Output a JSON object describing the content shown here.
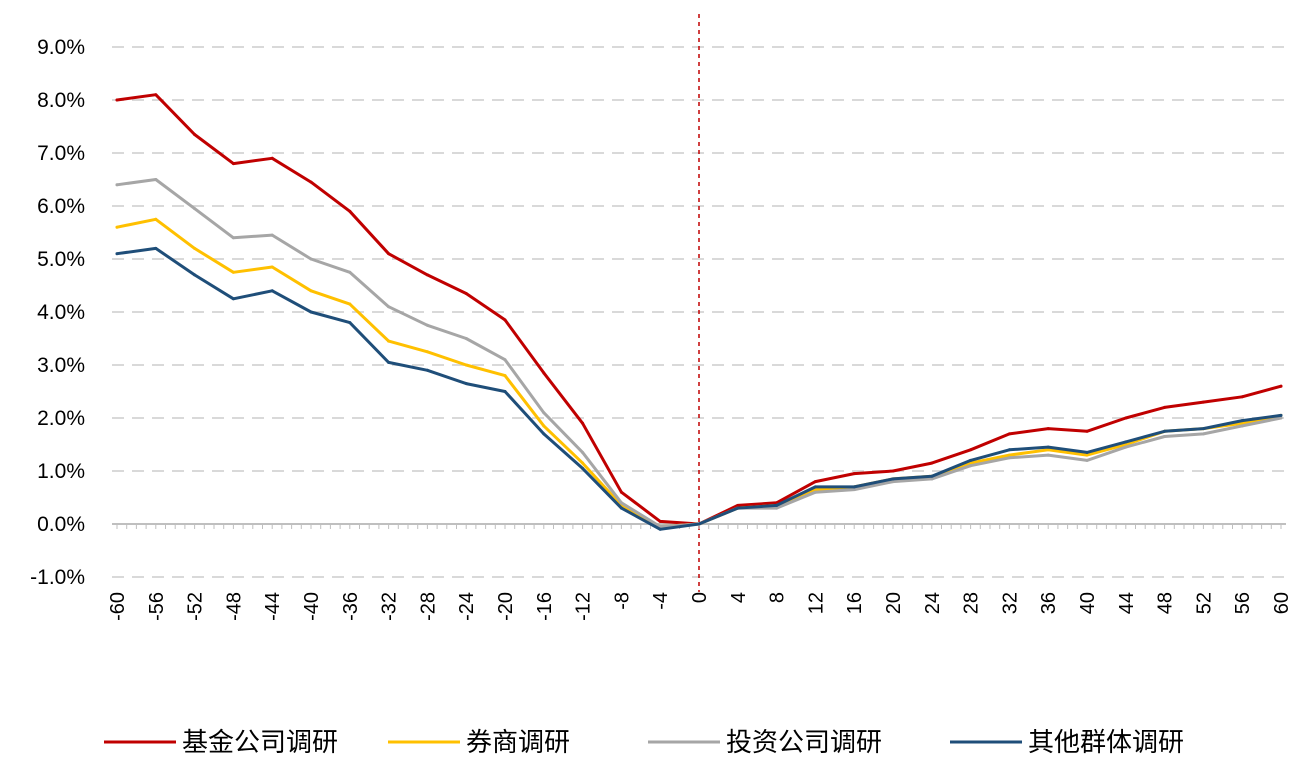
{
  "chart_data": {
    "type": "line",
    "title": "",
    "xlabel": "",
    "ylabel": "",
    "xlim": [
      -60,
      60
    ],
    "ylim": [
      -1.0,
      9.0
    ],
    "y_ticks": [
      "-1.0%",
      "0.0%",
      "1.0%",
      "2.0%",
      "3.0%",
      "4.0%",
      "5.0%",
      "6.0%",
      "7.0%",
      "8.0%",
      "9.0%"
    ],
    "y_tick_values": [
      -1,
      0,
      1,
      2,
      3,
      4,
      5,
      6,
      7,
      8,
      9
    ],
    "x_ticks": [
      "-60",
      "-56",
      "-52",
      "-48",
      "-44",
      "-40",
      "-36",
      "-32",
      "-28",
      "-24",
      "-20",
      "-16",
      "-12",
      "-8",
      "-4",
      "0",
      "4",
      "8",
      "12",
      "16",
      "20",
      "24",
      "28",
      "32",
      "36",
      "40",
      "44",
      "48",
      "52",
      "56",
      "60"
    ],
    "x_tick_values": [
      -60,
      -56,
      -52,
      -48,
      -44,
      -40,
      -36,
      -32,
      -28,
      -24,
      -20,
      -16,
      -12,
      -8,
      -4,
      0,
      4,
      8,
      12,
      16,
      20,
      24,
      28,
      32,
      36,
      40,
      44,
      48,
      52,
      56,
      60
    ],
    "grid": true,
    "reference_line_x": 0,
    "legend_position": "bottom",
    "x": [
      -60,
      -56,
      -52,
      -48,
      -44,
      -40,
      -36,
      -32,
      -28,
      -24,
      -20,
      -16,
      -12,
      -8,
      -4,
      0,
      4,
      8,
      12,
      16,
      20,
      24,
      28,
      32,
      36,
      40,
      44,
      48,
      52,
      56,
      60
    ],
    "series": [
      {
        "name": "基金公司调研",
        "color": "#C00000",
        "values": [
          8.0,
          8.1,
          7.35,
          6.8,
          6.9,
          6.45,
          5.9,
          5.1,
          4.7,
          4.35,
          3.85,
          2.85,
          1.9,
          0.6,
          0.05,
          0.0,
          0.35,
          0.4,
          0.8,
          0.95,
          1.0,
          1.15,
          1.4,
          1.7,
          1.8,
          1.75,
          2.0,
          2.2,
          2.3,
          2.4,
          2.6
        ]
      },
      {
        "name": "券商调研",
        "color": "#FFC000",
        "values": [
          5.6,
          5.75,
          5.2,
          4.75,
          4.85,
          4.4,
          4.15,
          3.45,
          3.25,
          3.0,
          2.8,
          1.85,
          1.15,
          0.35,
          -0.05,
          0.0,
          0.3,
          0.35,
          0.65,
          0.7,
          0.85,
          0.9,
          1.15,
          1.3,
          1.4,
          1.3,
          1.5,
          1.75,
          1.8,
          1.9,
          2.05
        ]
      },
      {
        "name": "投资公司调研",
        "color": "#A6A6A6",
        "values": [
          6.4,
          6.5,
          5.95,
          5.4,
          5.45,
          5.0,
          4.75,
          4.1,
          3.75,
          3.5,
          3.1,
          2.1,
          1.35,
          0.4,
          -0.05,
          0.0,
          0.3,
          0.3,
          0.6,
          0.65,
          0.8,
          0.85,
          1.1,
          1.25,
          1.3,
          1.2,
          1.45,
          1.65,
          1.7,
          1.85,
          2.0
        ]
      },
      {
        "name": "其他群体调研",
        "color": "#1F4E79",
        "values": [
          5.1,
          5.2,
          4.7,
          4.25,
          4.4,
          4.0,
          3.8,
          3.05,
          2.9,
          2.65,
          2.5,
          1.7,
          1.05,
          0.3,
          -0.1,
          0.0,
          0.3,
          0.35,
          0.7,
          0.7,
          0.85,
          0.9,
          1.2,
          1.4,
          1.45,
          1.35,
          1.55,
          1.75,
          1.8,
          1.95,
          2.05
        ]
      }
    ]
  }
}
